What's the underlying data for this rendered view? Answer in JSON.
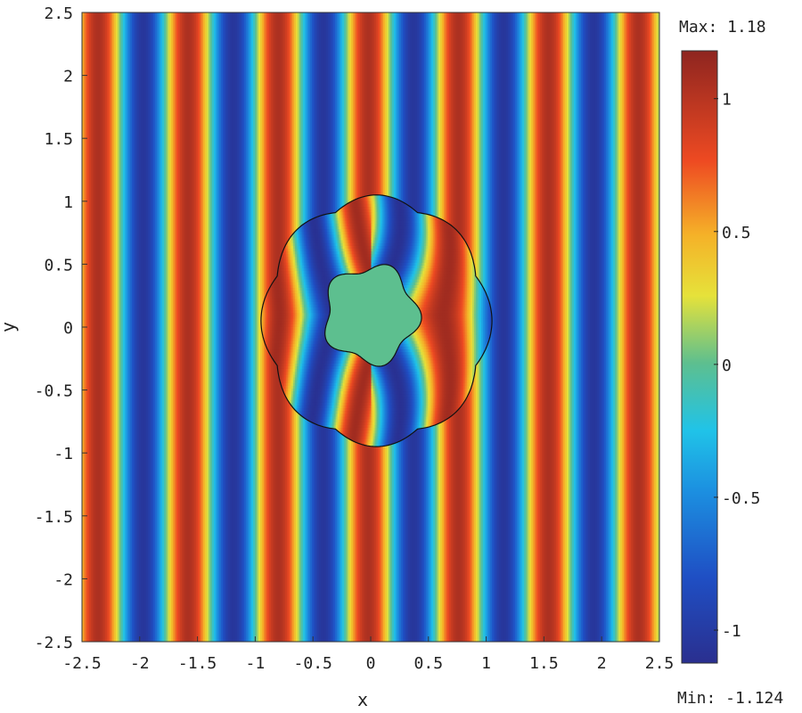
{
  "chart_data": {
    "type": "heatmap",
    "title": "",
    "xlabel": "x",
    "ylabel": "y",
    "xlim": [
      -2.5,
      2.5
    ],
    "ylim": [
      -2.5,
      2.5
    ],
    "x_ticks": [
      "-2.5",
      "-2",
      "-1.5",
      "-1",
      "-0.5",
      "0",
      "0.5",
      "1",
      "1.5",
      "2",
      "2.5"
    ],
    "y_ticks": [
      "2.5",
      "2",
      "1.5",
      "1",
      "0.5",
      "0",
      "-0.5",
      "-1",
      "-1.5",
      "-2",
      "-2.5"
    ],
    "colorbar": {
      "max_label": "Max: 1.18",
      "min_label": "Min: -1.124",
      "max": 1.18,
      "min": -1.124,
      "ticks": [
        "1",
        "0.5",
        "0",
        "-0.5",
        "-1"
      ],
      "colormap": "jet"
    },
    "field": {
      "description_free": true,
      "wave_direction": "vertical bands along x",
      "wavelength": 0.78,
      "outer_region_center": [
        0.05,
        0.05
      ],
      "outer_region_radius": 1.0,
      "scatterer_center": [
        0.0,
        0.1
      ],
      "scatterer_radius": 0.42,
      "scatterer_color": "#5dbf8f"
    },
    "grid": false,
    "legend": "none"
  }
}
